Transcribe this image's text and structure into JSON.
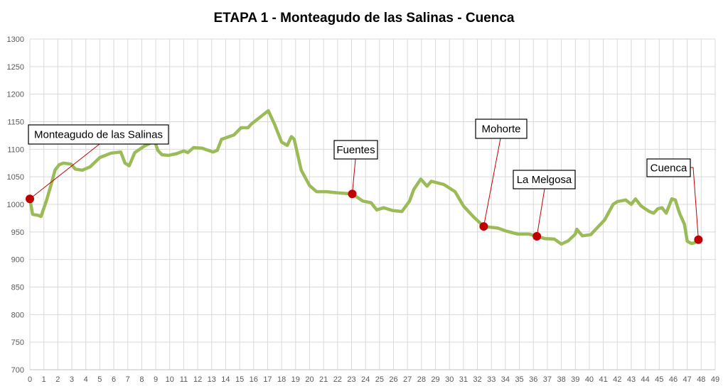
{
  "chart_data": {
    "type": "line",
    "title": "ETAPA 1 - Monteagudo de las Salinas - Cuenca",
    "xlabel": "",
    "ylabel": "",
    "xlim": [
      0,
      49
    ],
    "ylim": [
      700,
      1300
    ],
    "x_ticks": [
      0,
      1,
      2,
      3,
      4,
      5,
      6,
      7,
      8,
      9,
      10,
      11,
      12,
      13,
      14,
      15,
      16,
      17,
      18,
      19,
      20,
      21,
      22,
      23,
      24,
      25,
      26,
      27,
      28,
      29,
      30,
      31,
      32,
      33,
      34,
      35,
      36,
      37,
      38,
      39,
      40,
      41,
      42,
      43,
      44,
      45,
      46,
      47,
      48,
      49
    ],
    "y_ticks": [
      700,
      750,
      800,
      850,
      900,
      950,
      1000,
      1050,
      1100,
      1150,
      1200,
      1250,
      1300
    ],
    "grid": true,
    "line_color": "#9BBB59",
    "marker_color": "#C00000",
    "series": [
      {
        "x": [
          0,
          0.2,
          0.6,
          0.8,
          1.2,
          1.5,
          1.8,
          2.1,
          2.4,
          2.95,
          3.25,
          3.75,
          4.3,
          5,
          5.8,
          6.5,
          6.8,
          7.1,
          7.5,
          8.2,
          8.6,
          8.95,
          9.15,
          9.45,
          9.9,
          10.5,
          11,
          11.3,
          11.7,
          12.3,
          13.1,
          13.4,
          13.7,
          14.6,
          15.1,
          15.6,
          15.8,
          17.05,
          17.5,
          18,
          18.4,
          18.7,
          18.9,
          19.4,
          20,
          20.5,
          21.2,
          22,
          23.05,
          23.8,
          24.4,
          24.8,
          25.3,
          25.9,
          26.6,
          27.15,
          27.45,
          27.95,
          28.4,
          28.7,
          29.6,
          30.4,
          31,
          31.7,
          32.45,
          33.45,
          34,
          34.9,
          35.3,
          35.7,
          36.25,
          36.8,
          37.5,
          38,
          38.5,
          39,
          39.1,
          39.5,
          40.1,
          41.1,
          41.7,
          42,
          42.6,
          43,
          43.3,
          43.7,
          44,
          44.3,
          44.6,
          44.9,
          45.2,
          45.5,
          45.9,
          46.15,
          46.45,
          46.8,
          47,
          47.3,
          47.5,
          47.8
        ],
        "y": [
          1010,
          982,
          980,
          978,
          1008,
          1034,
          1062,
          1072,
          1075,
          1073,
          1064,
          1062,
          1068,
          1085,
          1093,
          1095,
          1075,
          1070,
          1094,
          1106,
          1111,
          1113,
          1098,
          1090,
          1089,
          1092,
          1097,
          1094,
          1103,
          1102,
          1095,
          1098,
          1118,
          1126,
          1139,
          1139,
          1145,
          1170,
          1145,
          1113,
          1107,
          1123,
          1118,
          1062,
          1034,
          1023,
          1023,
          1021,
          1019,
          1006,
          1003,
          990,
          994,
          989,
          987,
          1006,
          1027,
          1046,
          1033,
          1042,
          1036,
          1023,
          997,
          978,
          960,
          957,
          952,
          946,
          946,
          946,
          942,
          938,
          937,
          928,
          934,
          946,
          955,
          943,
          945,
          972,
          1000,
          1005,
          1008,
          1000,
          1010,
          997,
          992,
          987,
          984,
          992,
          994,
          984,
          1010,
          1008,
          984,
          964,
          933,
          929,
          930,
          936
        ]
      }
    ],
    "annotations": [
      {
        "text": "Monteagudo de las Salinas",
        "x": 0,
        "y": 1010
      },
      {
        "text": "Fuentes",
        "x": 23.05,
        "y": 1019
      },
      {
        "text": "Mohorte",
        "x": 32.45,
        "y": 960
      },
      {
        "text": "La Melgosa",
        "x": 36.25,
        "y": 942
      },
      {
        "text": "Cuenca",
        "x": 47.8,
        "y": 936
      }
    ]
  }
}
